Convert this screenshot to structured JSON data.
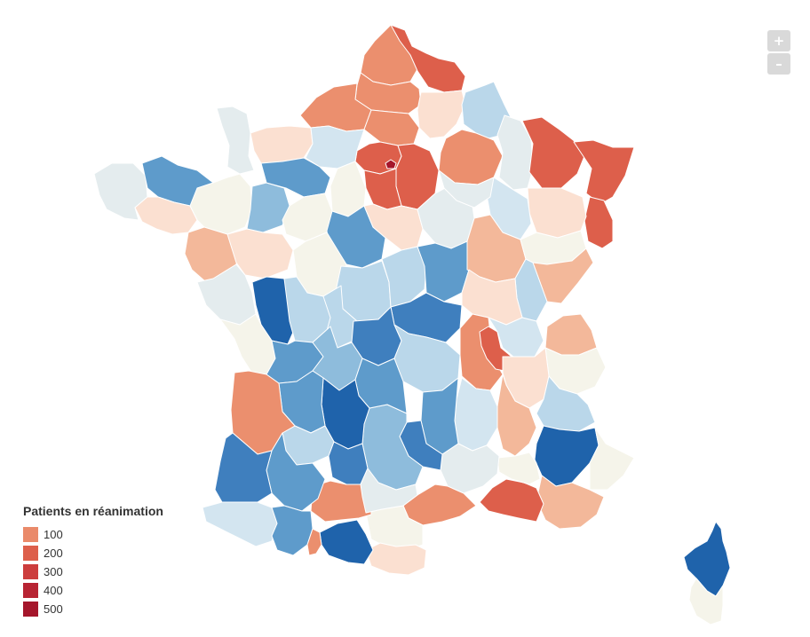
{
  "map": {
    "legend": {
      "title": "Patients en réanimation",
      "items": [
        {
          "label": "100",
          "color": "#ea8a6a"
        },
        {
          "label": "200",
          "color": "#dd5f4b"
        },
        {
          "label": "300",
          "color": "#cc3d3d"
        },
        {
          "label": "400",
          "color": "#b82433"
        },
        {
          "label": "500",
          "color": "#a5162b"
        }
      ]
    },
    "controls": {
      "zoom_in": "+",
      "zoom_out": "–"
    },
    "palette": {
      "r5": "#a5162b",
      "r4": "#c5313a",
      "r3": "#dd5f4b",
      "r2": "#eb8f6e",
      "r1": "#f3b89a",
      "r0": "#fbe0d1",
      "n0": "#f5f4ea",
      "n1": "#e4ecee",
      "b0": "#d3e5f0",
      "b1": "#bad7ea",
      "b2": "#8ebcdc",
      "b3": "#5e9bcb",
      "b4": "#3f7fbe",
      "b5": "#1f63ab"
    }
  }
}
